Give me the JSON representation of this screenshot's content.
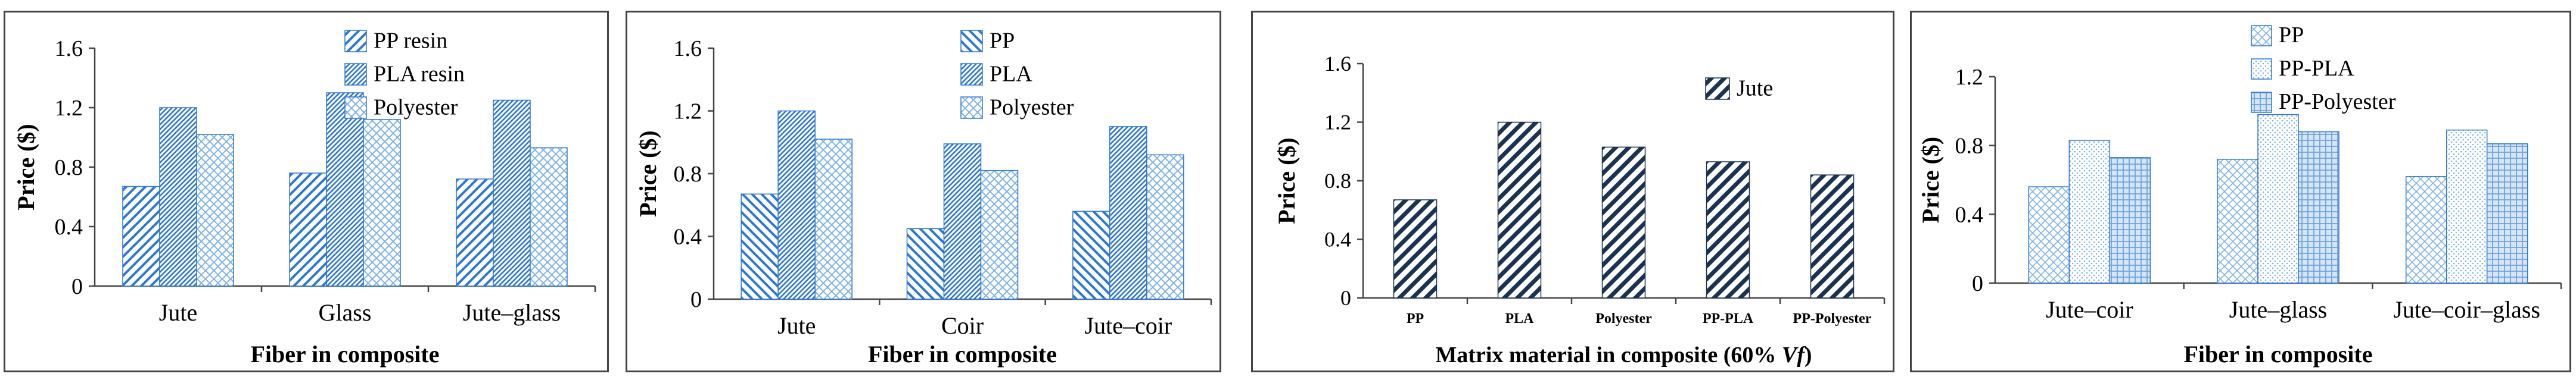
{
  "chart_data": [
    {
      "type": "bar",
      "categories": [
        "Jute",
        "Glass",
        "Jute–glass"
      ],
      "series": [
        {
          "name": "PP resin",
          "values": [
            0.67,
            0.76,
            0.72
          ],
          "pattern": "diag-up"
        },
        {
          "name": "PLA resin",
          "values": [
            1.2,
            1.3,
            1.25
          ],
          "pattern": "diag-dense"
        },
        {
          "name": "Polyester",
          "values": [
            1.02,
            1.12,
            0.93
          ],
          "pattern": "crosshatch"
        }
      ],
      "xlabel": "Fiber in composite",
      "ylabel": "Price ($)",
      "ylim": [
        0,
        1.6
      ],
      "yticks": [
        "0",
        "0.4",
        "0.8",
        "1.2",
        "1.6"
      ],
      "legend": "top-center",
      "grid": false
    },
    {
      "type": "bar",
      "categories": [
        "Jute",
        "Coir",
        "Jute–coir"
      ],
      "series": [
        {
          "name": "PP",
          "values": [
            0.67,
            0.45,
            0.56
          ],
          "pattern": "diag-down"
        },
        {
          "name": "PLA",
          "values": [
            1.2,
            0.99,
            1.1
          ],
          "pattern": "diag-dense"
        },
        {
          "name": "Polyester",
          "values": [
            1.02,
            0.82,
            0.92
          ],
          "pattern": "crosshatch"
        }
      ],
      "xlabel": "Fiber in composite",
      "ylabel": "Price ($)",
      "ylim": [
        0,
        1.6
      ],
      "yticks": [
        "0",
        "0.4",
        "0.8",
        "1.2",
        "1.6"
      ],
      "legend": "top-center",
      "grid": false
    },
    {
      "type": "bar",
      "categories": [
        "PP",
        "PLA",
        "Polyester",
        "PP-PLA",
        "PP-Polyester"
      ],
      "series": [
        {
          "name": "Jute",
          "values": [
            0.67,
            1.2,
            1.03,
            0.93,
            0.84
          ],
          "pattern": "diag-dark"
        }
      ],
      "xlabel": "Matrix material in composite (60% ",
      "xlabel_italic": "Vf",
      "xlabel_end": ")",
      "ylabel": "Price ($)",
      "ylim": [
        0,
        1.6
      ],
      "yticks": [
        "0",
        "0.4",
        "0.8",
        "1.2",
        "1.6"
      ],
      "legend": "top-right",
      "grid": false
    },
    {
      "type": "bar",
      "categories": [
        "Jute–coir",
        "Jute–glass",
        "Jute–coir–glass"
      ],
      "series": [
        {
          "name": "PP",
          "values": [
            0.56,
            0.72,
            0.62
          ],
          "pattern": "diamond"
        },
        {
          "name": "PP-PLA",
          "values": [
            0.83,
            0.98,
            0.89
          ],
          "pattern": "dots"
        },
        {
          "name": "PP-Polyester",
          "values": [
            0.73,
            0.88,
            0.81
          ],
          "pattern": "grid"
        }
      ],
      "xlabel": "Fiber in composite",
      "ylabel": "Price ($)",
      "ylim": [
        0,
        1.2
      ],
      "yticks": [
        "0",
        "0.4",
        "0.8",
        "1.2"
      ],
      "legend": "top-center",
      "grid": false
    }
  ],
  "colors": {
    "blue": "#2e78d2",
    "light_blue": "#7fb2e8",
    "dark_navy": "#1a3350",
    "axis": "#444444"
  }
}
